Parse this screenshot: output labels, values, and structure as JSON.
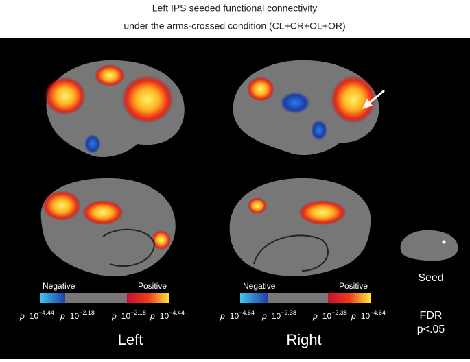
{
  "header": {
    "title_line1": "Left IPS seeded functional connectivity",
    "title_line2": "under the arms-crossed condition (CL+CR+OL+OR)"
  },
  "panels": {
    "left": {
      "label": "Left",
      "negative": "Negative",
      "positive": "Positive",
      "scale": [
        {
          "p": "p",
          "base": "=10",
          "exp": "−4.44"
        },
        {
          "p": "p",
          "base": "=10",
          "exp": "−2.18"
        },
        {
          "p": "p",
          "base": "=10",
          "exp": "−2.18"
        },
        {
          "p": "p",
          "base": "=10",
          "exp": "−4.44"
        }
      ]
    },
    "right": {
      "label": "Right",
      "negative": "Negative",
      "positive": "Positive",
      "scale": [
        {
          "p": "p",
          "base": "=10",
          "exp": "−4.64"
        },
        {
          "p": "p",
          "base": "=10",
          "exp": "−2.38"
        },
        {
          "p": "p",
          "base": "=10",
          "exp": "−2.38"
        },
        {
          "p": "p",
          "base": "=10",
          "exp": "−4.64"
        }
      ]
    }
  },
  "seed": {
    "label": "Seed"
  },
  "threshold": {
    "line1": "FDR",
    "line2": "p<.05"
  }
}
